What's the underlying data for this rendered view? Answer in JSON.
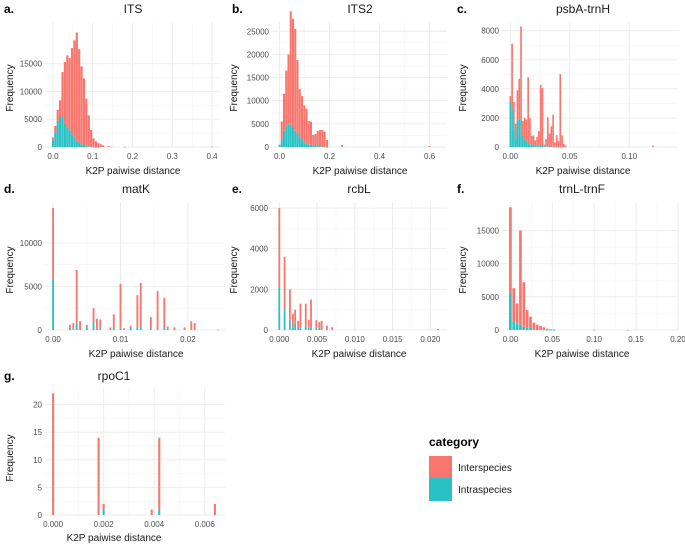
{
  "legend": {
    "title": "category",
    "items": [
      {
        "label": "Interspecies",
        "color": "#F8766D"
      },
      {
        "label": "Intraspecies",
        "color": "#2AC1C4"
      }
    ]
  },
  "colors": {
    "inter": "#F8766D",
    "intra": "#2AC1C4",
    "grid": "#EBEBEB"
  },
  "chart_data": [
    {
      "letter": "a.",
      "title": "ITS",
      "type": "bar",
      "stacked": true,
      "xlabel": "K2P paiwise distance",
      "ylabel": "Frequency",
      "xlim": [
        -0.02,
        0.42
      ],
      "ylim": [
        0,
        22500
      ],
      "xticks": [
        0.0,
        0.1,
        0.2,
        0.3,
        0.4
      ],
      "xtick_labels": [
        "0.0",
        "0.1",
        "0.2",
        "0.3",
        "0.4"
      ],
      "yticks": [
        0,
        5000,
        10000,
        15000
      ],
      "ytick_labels": [
        "0",
        "5000",
        "10000",
        "15000"
      ],
      "bin_width": 0.006,
      "x": [
        0.0,
        0.006,
        0.012,
        0.018,
        0.024,
        0.03,
        0.036,
        0.042,
        0.048,
        0.054,
        0.06,
        0.066,
        0.072,
        0.078,
        0.084,
        0.09,
        0.096,
        0.102,
        0.108,
        0.114,
        0.12,
        0.126,
        0.14,
        0.18,
        0.4
      ],
      "intra": [
        1200,
        2600,
        4700,
        5400,
        5500,
        4300,
        3500,
        3000,
        2300,
        1700,
        1100,
        800,
        500,
        350,
        200,
        100,
        60,
        40,
        20,
        10,
        0,
        0,
        0,
        0,
        0
      ],
      "inter": [
        500,
        1200,
        2000,
        3000,
        8000,
        11000,
        13000,
        13000,
        15500,
        17500,
        19500,
        16800,
        14000,
        12000,
        8500,
        5600,
        3000,
        1500,
        1000,
        700,
        500,
        300,
        150,
        40,
        60
      ]
    },
    {
      "letter": "b.",
      "title": "ITS2",
      "type": "bar",
      "stacked": true,
      "xlabel": "K2P paiwise distance",
      "ylabel": "Frequency",
      "xlim": [
        -0.03,
        0.67
      ],
      "ylim": [
        0,
        27000
      ],
      "xticks": [
        0.0,
        0.2,
        0.4,
        0.6
      ],
      "xtick_labels": [
        "0.0",
        "0.2",
        "0.4",
        "0.6"
      ],
      "yticks": [
        0,
        5000,
        10000,
        15000,
        20000,
        25000
      ],
      "ytick_labels": [
        "0",
        "5000",
        "10000",
        "15000",
        "20000",
        "25000"
      ],
      "bin_width": 0.009,
      "x": [
        0.0,
        0.009,
        0.018,
        0.027,
        0.036,
        0.045,
        0.054,
        0.063,
        0.072,
        0.081,
        0.09,
        0.099,
        0.108,
        0.117,
        0.126,
        0.135,
        0.144,
        0.153,
        0.162,
        0.171,
        0.18,
        0.19,
        0.25,
        0.6
      ],
      "intra": [
        200,
        1500,
        3500,
        4500,
        5000,
        4800,
        4200,
        3500,
        2800,
        2000,
        1500,
        1000,
        800,
        600,
        500,
        400,
        300,
        200,
        150,
        100,
        50,
        20,
        0,
        0
      ],
      "inter": [
        300,
        4000,
        8000,
        12000,
        15000,
        24500,
        23500,
        22000,
        16000,
        10500,
        9500,
        8000,
        7500,
        5000,
        5000,
        2200,
        2500,
        3300,
        3500,
        3600,
        3300,
        1500,
        400,
        200
      ]
    },
    {
      "letter": "c.",
      "title": "psbA-trnH",
      "type": "bar",
      "stacked": true,
      "xlabel": "K2P paiwise distance",
      "ylabel": "Frequency",
      "xlim": [
        -0.007,
        0.141
      ],
      "ylim": [
        0,
        8600
      ],
      "xticks": [
        0.0,
        0.05,
        0.1
      ],
      "xtick_labels": [
        "0.00",
        "0.05",
        "0.10"
      ],
      "yticks": [
        0,
        2000,
        4000,
        6000,
        8000
      ],
      "ytick_labels": [
        "0",
        "2000",
        "4000",
        "6000",
        "8000"
      ],
      "bin_width": 0.0015,
      "x": [
        0.0,
        0.0015,
        0.003,
        0.0045,
        0.006,
        0.0075,
        0.009,
        0.0105,
        0.012,
        0.0135,
        0.015,
        0.0165,
        0.018,
        0.0195,
        0.021,
        0.0225,
        0.024,
        0.0255,
        0.027,
        0.0285,
        0.03,
        0.0315,
        0.033,
        0.0345,
        0.036,
        0.0375,
        0.039,
        0.0405,
        0.042,
        0.0435,
        0.045,
        0.0465,
        0.12
      ],
      "intra": [
        3100,
        2600,
        1300,
        600,
        1900,
        1900,
        1900,
        800,
        500,
        400,
        200,
        200,
        150,
        100,
        150,
        100,
        100,
        80,
        60,
        50,
        40,
        40,
        30,
        30,
        20,
        20,
        15,
        10,
        10,
        5,
        5,
        0,
        0
      ],
      "inter": [
        400,
        4500,
        1800,
        1000,
        2000,
        2800,
        6400,
        1000,
        1500,
        1500,
        4600,
        1800,
        600,
        700,
        300,
        600,
        1000,
        4200,
        4000,
        100,
        500,
        2000,
        900,
        1400,
        2200,
        300,
        800,
        400,
        5000,
        800,
        200,
        100,
        100
      ]
    },
    {
      "letter": "d.",
      "title": "matK",
      "type": "bar",
      "stacked": true,
      "xlabel": "K2P paiwise distance",
      "ylabel": "Frequency",
      "xlim": [
        -0.0012,
        0.0255
      ],
      "ylim": [
        0,
        14700
      ],
      "xticks": [
        0.0,
        0.01,
        0.02
      ],
      "xtick_labels": [
        "0.00",
        "0.01",
        "0.02"
      ],
      "yticks": [
        0,
        5000,
        10000
      ],
      "ytick_labels": [
        "0",
        "5000",
        "10000"
      ],
      "bin_width": 0.0003,
      "x": [
        0.0,
        0.0025,
        0.003,
        0.0035,
        0.004,
        0.005,
        0.006,
        0.0065,
        0.007,
        0.0085,
        0.009,
        0.01,
        0.0105,
        0.0115,
        0.0125,
        0.013,
        0.0145,
        0.0155,
        0.0165,
        0.017,
        0.018,
        0.0195,
        0.0205,
        0.021,
        0.0245
      ],
      "intra": [
        5800,
        300,
        100,
        700,
        100,
        300,
        900,
        100,
        200,
        100,
        300,
        200,
        100,
        300,
        300,
        400,
        200,
        100,
        300,
        200,
        100,
        100,
        100,
        100,
        0
      ],
      "inter": [
        8200,
        300,
        700,
        6200,
        900,
        300,
        1600,
        1200,
        1000,
        200,
        1500,
        5100,
        100,
        200,
        3700,
        5000,
        1300,
        4400,
        3400,
        200,
        200,
        200,
        900,
        700,
        50
      ]
    },
    {
      "letter": "e.",
      "title": "rcbL",
      "type": "bar",
      "stacked": true,
      "xlabel": "K2P paiwise distance",
      "ylabel": "Frequency",
      "xlim": [
        -0.0011,
        0.0222
      ],
      "ylim": [
        0,
        6300
      ],
      "xticks": [
        0.0,
        0.005,
        0.01,
        0.015,
        0.02
      ],
      "xtick_labels": [
        "0.000",
        "0.005",
        "0.010",
        "0.015",
        "0.020"
      ],
      "bin_width": 0.00026,
      "yticks": [
        0,
        2000,
        4000,
        6000
      ],
      "ytick_labels": [
        "0",
        "2000",
        "4000",
        "6000"
      ],
      "x": [
        0.0,
        0.0007,
        0.0014,
        0.0018,
        0.0021,
        0.0025,
        0.0028,
        0.0035,
        0.0039,
        0.0042,
        0.0049,
        0.0053,
        0.0056,
        0.0063,
        0.007,
        0.021
      ],
      "intra": [
        2100,
        1000,
        500,
        100,
        300,
        150,
        100,
        200,
        100,
        100,
        80,
        100,
        50,
        20,
        20,
        0
      ],
      "inter": [
        3900,
        2600,
        1500,
        700,
        700,
        300,
        1200,
        1100,
        400,
        1400,
        400,
        300,
        400,
        200,
        120,
        50
      ]
    },
    {
      "letter": "f.",
      "title": "trnL-trnF",
      "type": "bar",
      "stacked": true,
      "xlabel": "K2P paiwise distance",
      "ylabel": "Frequency",
      "xlim": [
        -0.01,
        0.2
      ],
      "ylim": [
        0,
        19300
      ],
      "xticks": [
        0.0,
        0.05,
        0.1,
        0.15,
        0.2
      ],
      "xtick_labels": [
        "0.00",
        "0.05",
        "0.10",
        "0.15",
        "0.20"
      ],
      "yticks": [
        0,
        5000,
        10000,
        15000
      ],
      "ytick_labels": [
        "0",
        "5000",
        "10000",
        "15000"
      ],
      "bin_width": 0.0035,
      "x": [
        0.0,
        0.004,
        0.008,
        0.012,
        0.016,
        0.02,
        0.024,
        0.028,
        0.032,
        0.036,
        0.04,
        0.044,
        0.048,
        0.052,
        0.1,
        0.14
      ],
      "intra": [
        5500,
        1300,
        1000,
        800,
        500,
        400,
        300,
        200,
        150,
        100,
        60,
        40,
        20,
        10,
        0,
        0
      ],
      "inter": [
        13000,
        5000,
        3000,
        14200,
        6700,
        2600,
        1700,
        900,
        650,
        500,
        340,
        160,
        100,
        60,
        40,
        20
      ]
    },
    {
      "letter": "g.",
      "title": "rpoC1",
      "type": "bar",
      "stacked": true,
      "xlabel": "K2P paiwise distance",
      "ylabel": "Frequency",
      "xlim": [
        -0.00032,
        0.0068
      ],
      "ylim": [
        0,
        23
      ],
      "xticks": [
        0.0,
        0.002,
        0.004,
        0.006
      ],
      "xtick_labels": [
        "0.000",
        "0.002",
        "0.004",
        "0.006"
      ],
      "yticks": [
        0,
        5,
        10,
        15,
        20
      ],
      "ytick_labels": [
        "0",
        "5",
        "10",
        "15",
        "20"
      ],
      "bin_width": 9e-05,
      "x": [
        0.0,
        0.0018,
        0.002,
        0.0039,
        0.0042,
        0.0064
      ],
      "intra": [
        0,
        0,
        1,
        0,
        1,
        0
      ],
      "inter": [
        22,
        14,
        1,
        1,
        13,
        2
      ]
    }
  ]
}
